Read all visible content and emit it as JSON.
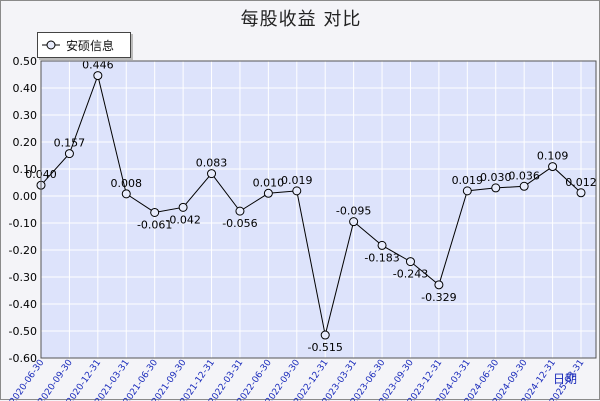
{
  "title": "每股收益  对比",
  "chart_data": {
    "type": "line",
    "title": "每股收益  对比",
    "x": [
      "2020-06-30",
      "2020-09-30",
      "2020-12-31",
      "2021-03-31",
      "2021-06-30",
      "2021-09-30",
      "2021-12-31",
      "2022-03-31",
      "2022-06-30",
      "2022-09-30",
      "2022-12-31",
      "2023-03-31",
      "2023-06-30",
      "2023-09-30",
      "2023-12-31",
      "2024-03-31",
      "2024-06-30",
      "2024-09-30",
      "2024-12-31",
      "2025-03-31"
    ],
    "series": [
      {
        "name": "安硕信息",
        "values": [
          0.04,
          0.157,
          0.446,
          0.008,
          -0.061,
          -0.042,
          0.083,
          -0.056,
          0.01,
          0.019,
          -0.515,
          -0.095,
          -0.183,
          -0.243,
          -0.329,
          0.019,
          0.03,
          0.036,
          0.109,
          0.012
        ],
        "labels": [
          "0.040",
          "0.157",
          "0.446",
          "0.008",
          "-0.061",
          "-0.042",
          "0.083",
          "-0.056",
          "0.010",
          "0.019",
          "-0.515",
          "-0.095",
          "-0.183",
          "-0.243",
          "-0.329",
          "0.019",
          "0.030",
          "0.036",
          "0.109",
          "0.012"
        ]
      }
    ],
    "ylim": [
      -0.6,
      0.5
    ],
    "yticks": [
      "0.50",
      "0.40",
      "0.30",
      "0.20",
      "0.10",
      "0.00",
      "-0.10",
      "-0.20",
      "-0.30",
      "-0.40",
      "-0.50",
      "-0.60"
    ],
    "ylabel": "日期",
    "legend_position": "top-left",
    "grid": true,
    "colors": {
      "plot_bg": "#dde3fb",
      "grid": "#ffffff",
      "line": "#000000",
      "marker_fill": "#e8ecfc",
      "axis_text": "#000000",
      "xlabel_text": "#1a2bbb"
    }
  }
}
